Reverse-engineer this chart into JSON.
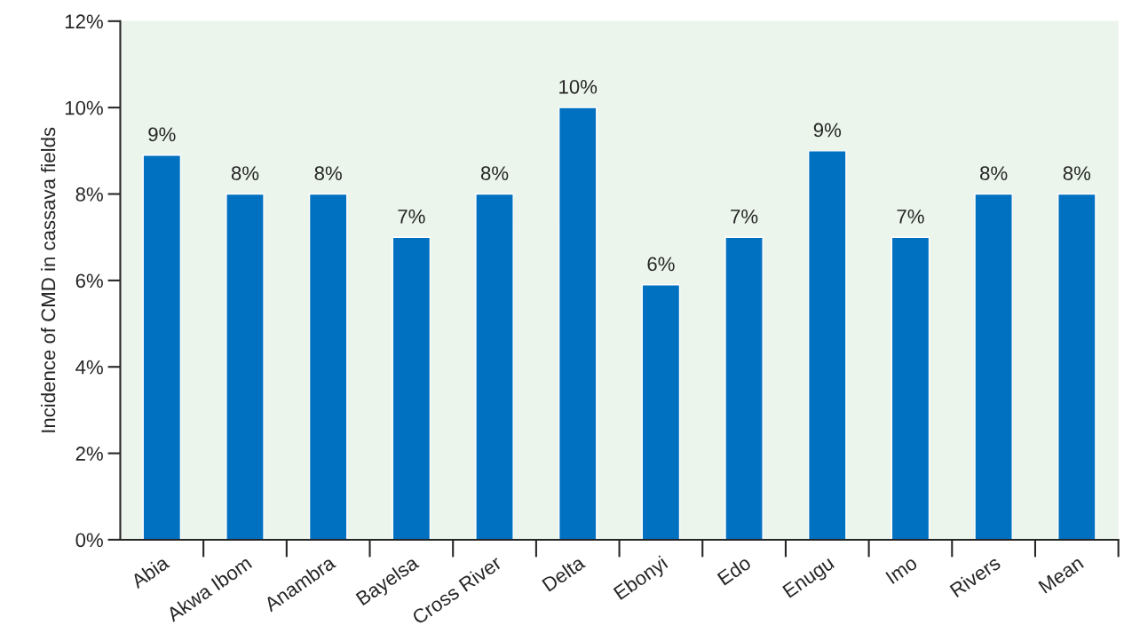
{
  "chart_data": {
    "type": "bar",
    "ylabel": "Incidence of CMD in cassava fields",
    "categories": [
      "Abia",
      "Akwa Ibom",
      "Anambra",
      "Bayelsa",
      "Cross River",
      "Delta",
      "Ebonyi",
      "Edo",
      "Enugu",
      "Imo",
      "Rivers",
      "Mean"
    ],
    "values": [
      8.9,
      8.0,
      8.0,
      7.0,
      8.0,
      10.0,
      5.9,
      7.0,
      9.0,
      7.0,
      8.0,
      8.0
    ],
    "value_labels": [
      "9%",
      "8%",
      "8%",
      "7%",
      "8%",
      "10%",
      "6%",
      "7%",
      "9%",
      "7%",
      "8%",
      "8%"
    ],
    "color": "#0070c0",
    "ylim": [
      0,
      12
    ],
    "yticks": [
      {
        "value": 0,
        "label": "0%"
      },
      {
        "value": 2,
        "label": "2%"
      },
      {
        "value": 4,
        "label": "4%"
      },
      {
        "value": 6,
        "label": "6%"
      },
      {
        "value": 8,
        "label": "8%"
      },
      {
        "value": 10,
        "label": "10%"
      },
      {
        "value": 12,
        "label": "12%"
      }
    ],
    "grid": false,
    "legend": false
  }
}
